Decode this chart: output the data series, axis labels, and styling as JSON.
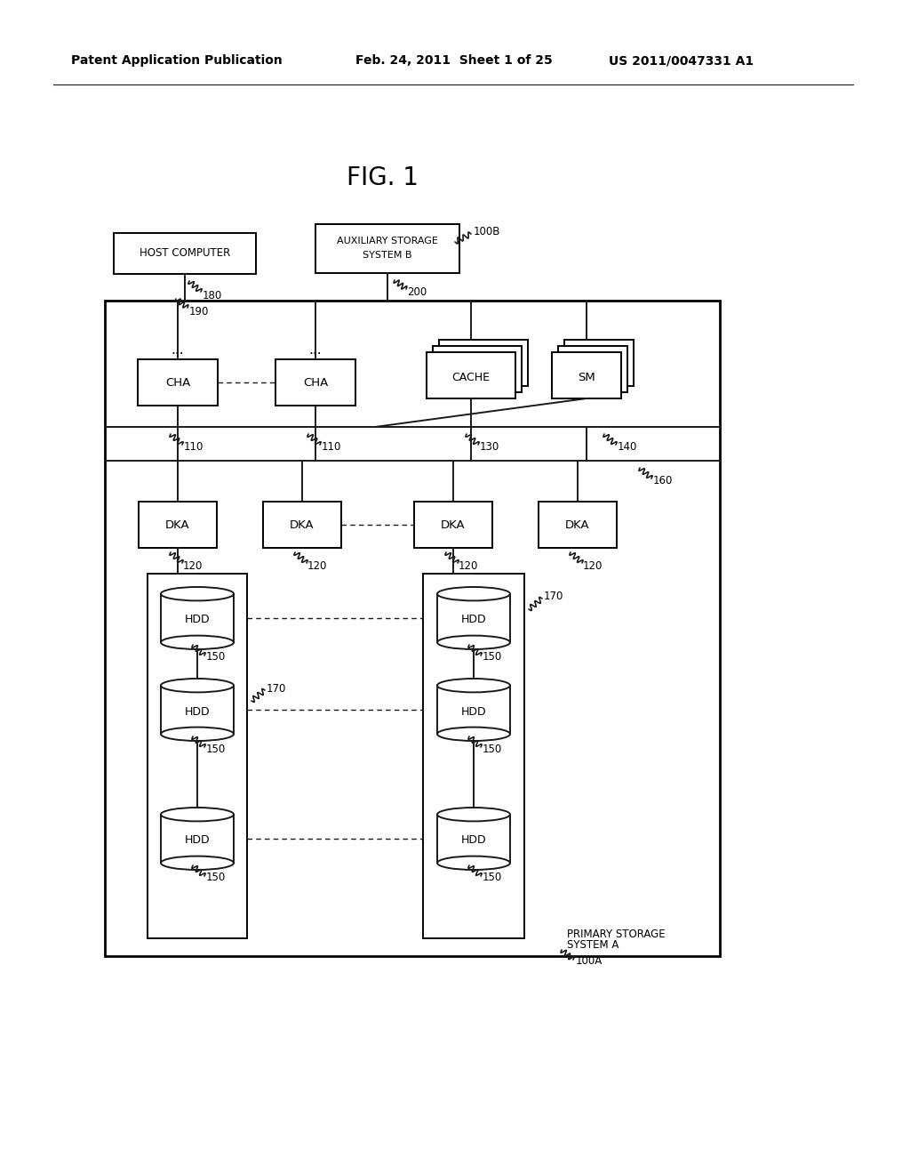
{
  "background_color": "#ffffff",
  "header_left": "Patent Application Publication",
  "header_mid": "Feb. 24, 2011  Sheet 1 of 25",
  "header_right": "US 2011/0047331 A1",
  "fig_label": "FIG. 1",
  "header_fontsize": 10,
  "fig_fontsize": 20
}
